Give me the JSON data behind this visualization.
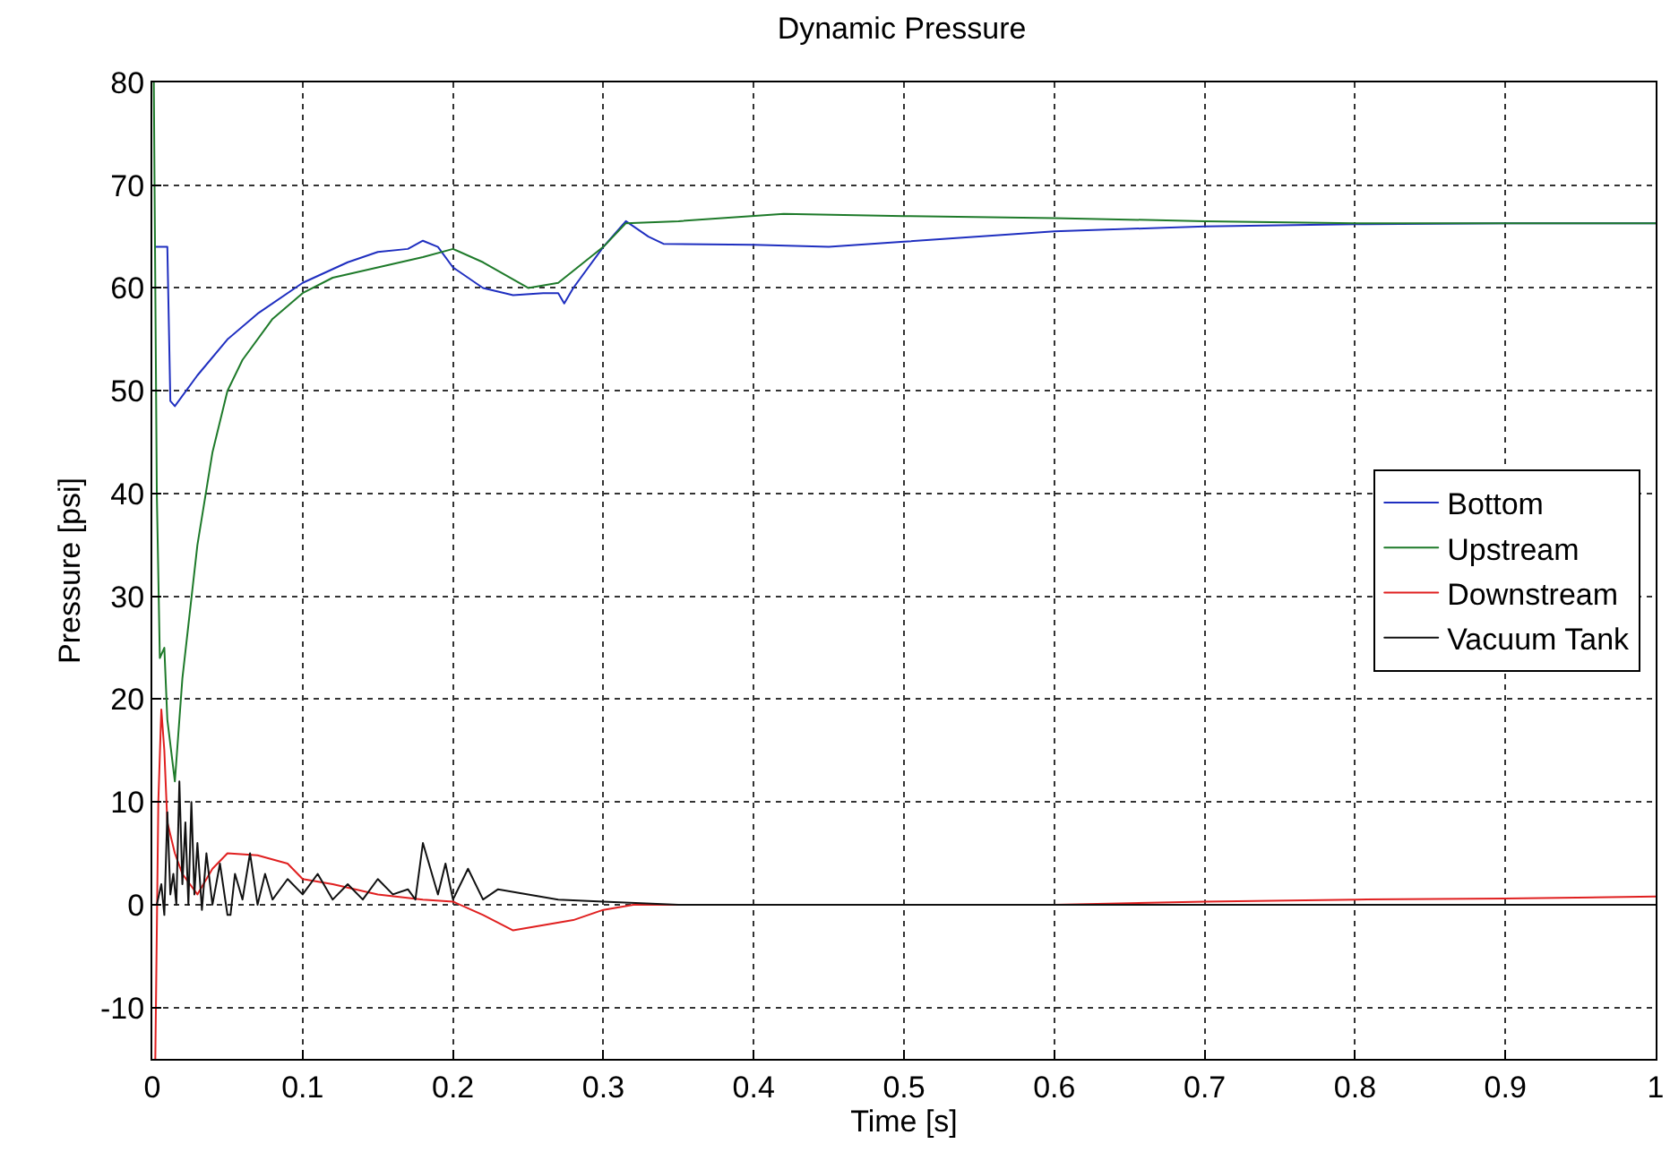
{
  "chart_data": {
    "type": "line",
    "title": "Dynamic Pressure",
    "xlabel": "Time [s]",
    "ylabel": "Pressure [psi]",
    "xlim": [
      0,
      1
    ],
    "ylim": [
      -15,
      80
    ],
    "xticks": [
      0,
      0.1,
      0.2,
      0.3,
      0.4,
      0.5,
      0.6,
      0.7,
      0.8,
      0.9,
      1
    ],
    "yticks": [
      -10,
      0,
      10,
      20,
      30,
      40,
      50,
      60,
      70,
      80
    ],
    "grid": true,
    "legend": "right",
    "line_style": "solid",
    "series": [
      {
        "name": "Bottom",
        "color": "#1f2fc0",
        "x": [
          0.002,
          0.01,
          0.012,
          0.015,
          0.03,
          0.05,
          0.07,
          0.1,
          0.13,
          0.15,
          0.17,
          0.18,
          0.19,
          0.2,
          0.22,
          0.24,
          0.26,
          0.27,
          0.274,
          0.28,
          0.3,
          0.315,
          0.33,
          0.34,
          0.4,
          0.45,
          0.5,
          0.6,
          0.7,
          0.8,
          0.9,
          1
        ],
        "values": [
          64,
          64,
          49,
          48.5,
          51.5,
          55,
          57.5,
          60.5,
          62.5,
          63.5,
          63.8,
          64.6,
          64,
          62,
          60,
          59.3,
          59.5,
          59.5,
          58.5,
          60,
          64,
          66.5,
          65,
          64.3,
          64.2,
          64,
          64.5,
          65.5,
          66,
          66.2,
          66.3,
          66.3
        ]
      },
      {
        "name": "Upstream",
        "color": "#1e7a2a",
        "x": [
          0.001,
          0.003,
          0.005,
          0.008,
          0.01,
          0.015,
          0.02,
          0.03,
          0.04,
          0.05,
          0.06,
          0.08,
          0.1,
          0.12,
          0.15,
          0.18,
          0.2,
          0.22,
          0.25,
          0.27,
          0.3,
          0.315,
          0.35,
          0.42,
          0.5,
          0.6,
          0.7,
          0.8,
          0.9,
          1
        ],
        "values": [
          80,
          40,
          24,
          25,
          18,
          12,
          22,
          35,
          44,
          50,
          53,
          57,
          59.5,
          61,
          62,
          63,
          63.8,
          62.5,
          60,
          60.5,
          64,
          66.3,
          66.5,
          67.2,
          67,
          66.8,
          66.5,
          66.3,
          66.3,
          66.3
        ]
      },
      {
        "name": "Downstream",
        "color": "#e02020",
        "x": [
          0.002,
          0.004,
          0.006,
          0.008,
          0.01,
          0.015,
          0.02,
          0.03,
          0.04,
          0.05,
          0.07,
          0.09,
          0.1,
          0.12,
          0.15,
          0.18,
          0.2,
          0.22,
          0.24,
          0.26,
          0.28,
          0.3,
          0.32,
          0.4,
          0.5,
          0.6,
          0.7,
          0.8,
          0.9,
          1
        ],
        "values": [
          -15,
          10,
          19,
          15,
          8,
          5,
          3,
          1,
          3.5,
          5,
          4.8,
          4,
          2.5,
          2,
          1,
          0.5,
          0.3,
          -1,
          -2.5,
          -2,
          -1.5,
          -0.5,
          0,
          0,
          0,
          0,
          0.3,
          0.5,
          0.6,
          0.8
        ]
      },
      {
        "name": "Vacuum Tank",
        "color": "#111111",
        "x": [
          0.003,
          0.006,
          0.008,
          0.01,
          0.012,
          0.014,
          0.016,
          0.018,
          0.02,
          0.022,
          0.024,
          0.026,
          0.028,
          0.03,
          0.033,
          0.036,
          0.04,
          0.045,
          0.05,
          0.052,
          0.055,
          0.06,
          0.065,
          0.07,
          0.075,
          0.08,
          0.09,
          0.1,
          0.11,
          0.12,
          0.13,
          0.14,
          0.15,
          0.16,
          0.17,
          0.175,
          0.18,
          0.19,
          0.195,
          0.2,
          0.21,
          0.22,
          0.23,
          0.25,
          0.27,
          0.3,
          0.35,
          0.5,
          0.7,
          1
        ],
        "values": [
          0,
          2,
          -1,
          9,
          1,
          3,
          0,
          12,
          2,
          8,
          0,
          10,
          1,
          6,
          -0.5,
          5,
          0,
          4,
          -1,
          -1,
          3,
          0.5,
          5,
          0,
          3,
          0.5,
          2.5,
          1,
          3,
          0.5,
          2,
          0.5,
          2.5,
          1,
          1.5,
          0.5,
          6,
          1,
          4,
          0.5,
          3.5,
          0.5,
          1.5,
          1,
          0.5,
          0.3,
          0,
          0,
          0,
          0
        ]
      }
    ]
  }
}
